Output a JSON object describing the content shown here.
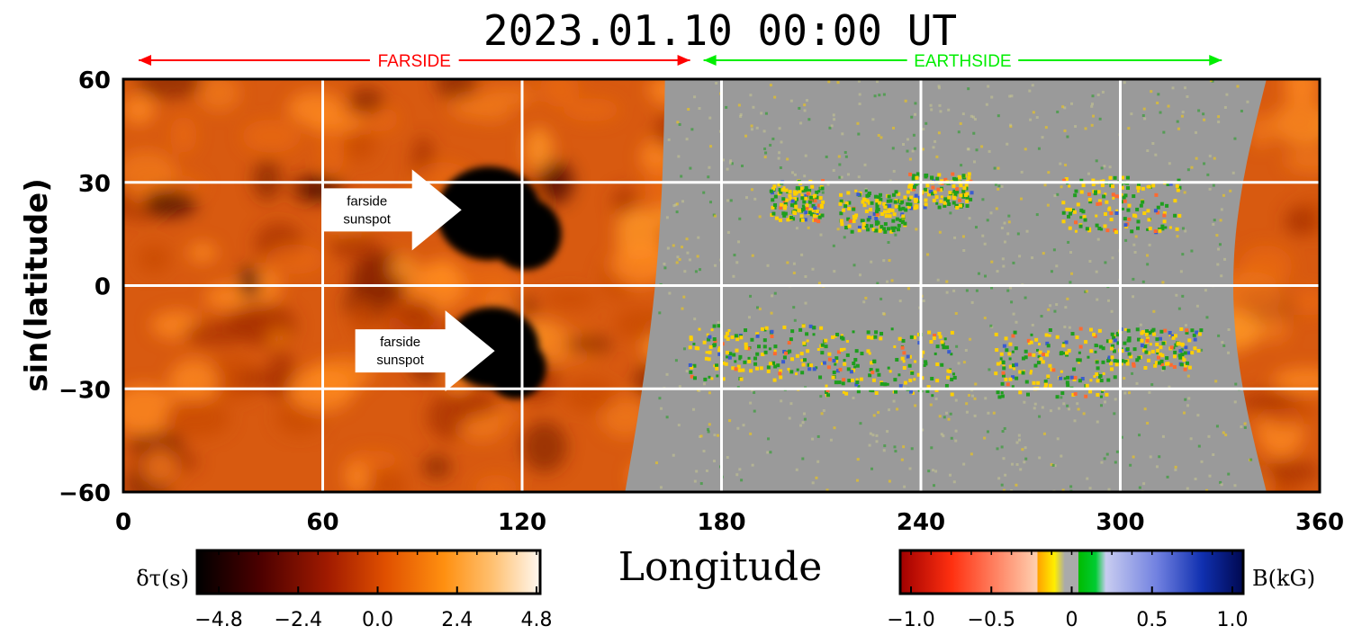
{
  "chart_data": {
    "type": "heatmap",
    "title": "2023.01.10 00:00 UT",
    "xlabel": "Longitude",
    "ylabel": "sin(latitude)",
    "xlim": [
      0,
      360
    ],
    "ylim": [
      -60,
      60
    ],
    "xticks": [
      "0",
      "60",
      "120",
      "180",
      "240",
      "300",
      "360"
    ],
    "yticks": [
      "60",
      "30",
      "0",
      "−30",
      "−60"
    ],
    "grid": true,
    "sides": [
      {
        "label": "FARSIDE",
        "lon_start": 0,
        "lon_end": 170,
        "color": "#ff0000"
      },
      {
        "label": "EARTHSIDE",
        "lon_start": 170,
        "lon_end": 330,
        "color": "#00ee00"
      }
    ],
    "annotations": [
      {
        "line1": "farside",
        "line2": "sunspot",
        "lon": 95,
        "lat": 22
      },
      {
        "line1": "farside",
        "line2": "sunspot",
        "lon": 105,
        "lat": -19
      }
    ],
    "farside_colorbar": {
      "label": "δτ(s)",
      "ticks": [
        "−4.8",
        "−2.4",
        "0.0",
        "2.4",
        "4.8"
      ],
      "range": [
        -4.8,
        4.8
      ]
    },
    "magnetogram_colorbar": {
      "label": "B(kG)",
      "ticks": [
        "−1.0",
        "−0.5",
        "0",
        "0.5",
        "1.0"
      ],
      "range": [
        -1.0,
        1.0
      ]
    }
  },
  "colors": {
    "farside_dark": "#000000",
    "farside_mid": "#c43a00",
    "farside_light": "#ff9a1a",
    "disk_gray": "#9a9a9a",
    "positive_field": "#ffd000",
    "negative_field": "#1e9e1e",
    "grid": "#ffffff"
  }
}
